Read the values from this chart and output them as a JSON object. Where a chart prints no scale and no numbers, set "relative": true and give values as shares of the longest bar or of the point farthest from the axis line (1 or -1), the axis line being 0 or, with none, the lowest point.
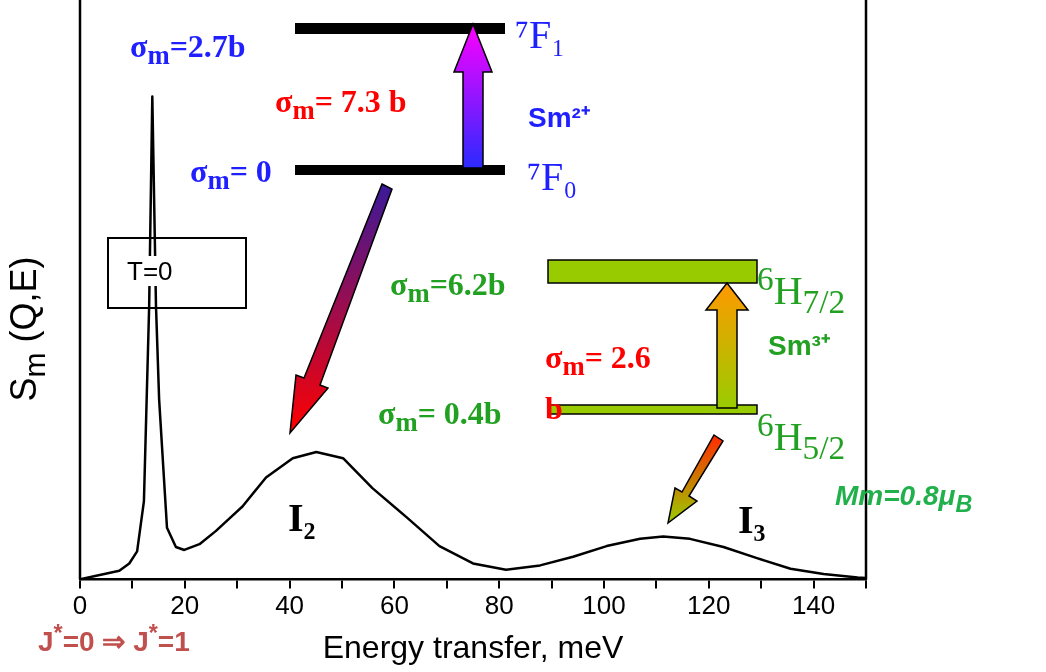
{
  "chart_data": {
    "type": "line",
    "xlabel": "Energy transfer, meV",
    "ylabel": "S$_{m}$ (Q,E)",
    "relative": true,
    "legend": false,
    "grid": false,
    "marker": "none",
    "line_style": "solid",
    "xlim": [
      0,
      150
    ],
    "xticks": [
      0,
      {
        "value": 10,
        "label": null
      },
      20,
      {
        "value": 30,
        "label": null
      },
      40,
      {
        "value": 50,
        "label": null
      },
      60,
      {
        "value": 70,
        "label": null
      },
      80,
      {
        "value": 90,
        "label": null
      },
      100,
      {
        "value": 110,
        "label": null
      },
      120,
      {
        "value": 130,
        "label": null
      },
      140,
      {
        "value": 150,
        "label": null
      }
    ],
    "series": [
      {
        "color": "#000000",
        "x": [
          0,
          7.5,
          9.4,
          10.9,
          12.2,
          13.2,
          13.8,
          14.5,
          15.1,
          16.6,
          18.3,
          19.9,
          22.8,
          25.9,
          31.0,
          35.5,
          40.6,
          45.1,
          50.2,
          55.8,
          62.3,
          68.6,
          75.0,
          81.3,
          87.8,
          94.1,
          100.5,
          106.9,
          111.3,
          116.4,
          122.8,
          129.2,
          135.6,
          141.9,
          148.4,
          150
        ],
        "values": [
          0,
          0.018,
          0.033,
          0.058,
          0.162,
          0.567,
          1,
          0.567,
          0.373,
          0.107,
          0.067,
          0.061,
          0.073,
          0.1,
          0.151,
          0.211,
          0.251,
          0.264,
          0.251,
          0.189,
          0.129,
          0.069,
          0.033,
          0.02,
          0.029,
          0.047,
          0.069,
          0.084,
          0.089,
          0.084,
          0.067,
          0.044,
          0.022,
          0.011,
          0.004,
          0.003
        ]
      }
    ],
    "annotations": [
      "σ$_{m}$=2.7b",
      "⁷F₁",
      "σ$_{m}$= 7.3 b",
      "Sm²⁺",
      "σ$_{m}$= 0",
      "⁷F₀",
      "T=0",
      "σ$_{m}$=6.2b",
      "$^{6}$H$_{7/2}$",
      "σ$_{m}$= 2.6 b",
      "Sm³⁺",
      "σ$_{m}$= 0.4b",
      "$^{6}$H$_{5/2}$",
      "Mm=0.8μ$_{B}$",
      "I₂",
      "I₃",
      "J$^{*}$=0 ⇒ J$^{*}$=1"
    ]
  }
}
